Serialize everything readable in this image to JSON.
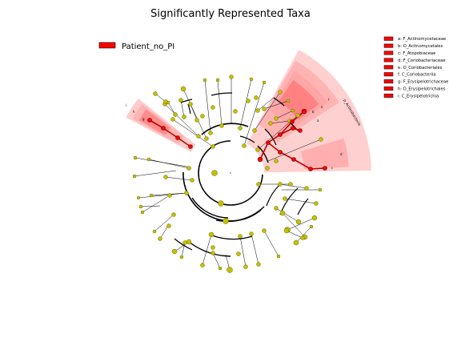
{
  "title": "Significantly Represented Taxa",
  "legend": {
    "group": "Patient_no_PI",
    "group_color": "#ff0000"
  },
  "key": [
    "a: F_Actinomycetaceae",
    "b: O_Actinomycetales",
    "c: F_Atopobiaceae",
    "d: F_Coriobacteriaceae",
    "e: O_Coriobacteriales",
    "f: C_Coriobacteriia",
    "g: F_Erysipelotrichaceae",
    "h: O_Erysipelotrichales",
    "i: C_Erysipelotrichia"
  ],
  "clade_labels": {
    "actino": "p_Actinobacteria",
    "f": "f",
    "e": "e",
    "i": "i",
    "h": "h",
    "g": "g",
    "b": "b",
    "a": "a",
    "c": "c",
    "d": "d"
  },
  "colors": {
    "node_default": "#c4c000",
    "node_edge": "#6e6a00",
    "node_sig": "#ff0000",
    "node_sig_edge": "#600000",
    "shade_light": "#ffc8c8",
    "shade_mid": "#ff9a9a",
    "shade_dark": "#ff5555"
  }
}
